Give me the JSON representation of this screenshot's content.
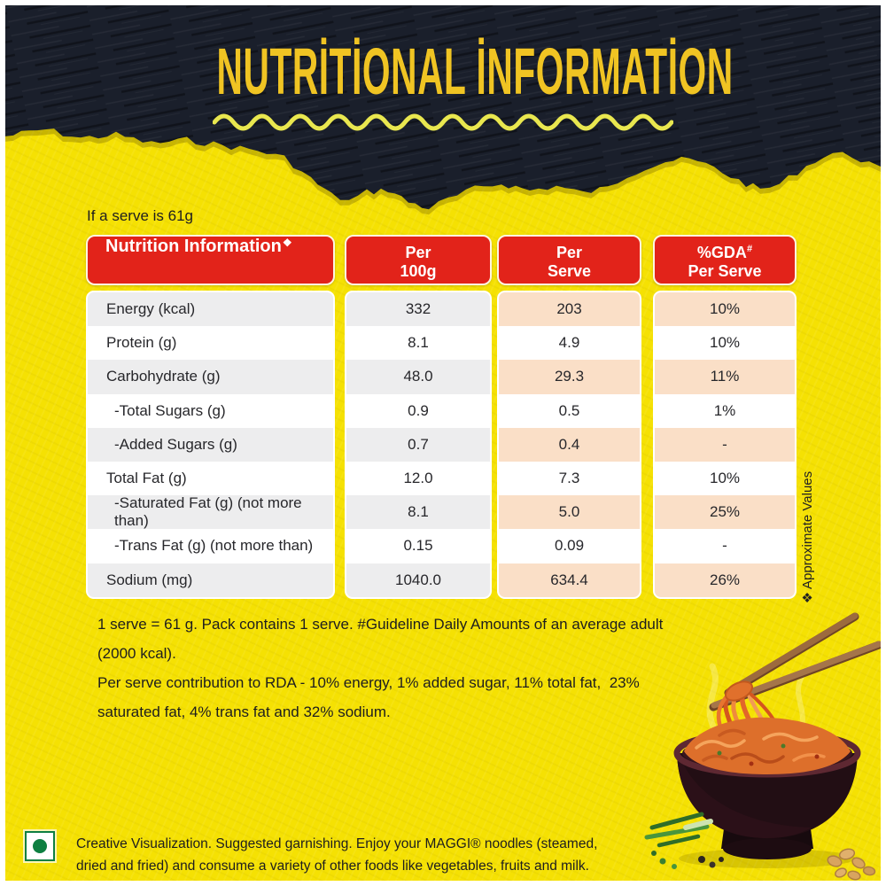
{
  "header": {
    "title": "NUTRİTİONAL İNFORMATİON"
  },
  "intro_text": "If a serve is 61g",
  "table": {
    "name_header": {
      "text": "Nutrition Information",
      "symbol": "❖"
    },
    "col_headers": [
      {
        "line1": "Per",
        "sup": "",
        "line2": "100g"
      },
      {
        "line1": "Per",
        "sup": "",
        "line2": "Serve"
      },
      {
        "line1": "%GDA",
        "sup": "#",
        "line2": "Per Serve"
      }
    ],
    "rows": [
      {
        "label": "Energy (kcal)",
        "per100": "332",
        "serve": "203",
        "gda": "10%"
      },
      {
        "label": "Protein (g)",
        "per100": "8.1",
        "serve": "4.9",
        "gda": "10%"
      },
      {
        "label": "Carbohydrate (g)",
        "per100": "48.0",
        "serve": "29.3",
        "gda": "11%"
      },
      {
        "label": "-Total Sugars (g)",
        "per100": "0.9",
        "serve": "0.5",
        "gda": "1%"
      },
      {
        "label": "-Added Sugars (g)",
        "per100": "0.7",
        "serve": "0.4",
        "gda": "-"
      },
      {
        "label": "Total Fat (g)",
        "per100": "12.0",
        "serve": "7.3",
        "gda": "10%"
      },
      {
        "label": "-Saturated Fat (g) (not more than)",
        "per100": "8.1",
        "serve": "5.0",
        "gda": "25%"
      },
      {
        "label": "-Trans Fat (g) (not more than)",
        "per100": "0.15",
        "serve": "0.09",
        "gda": "-"
      },
      {
        "label": "Sodium (mg)",
        "per100": "1040.0",
        "serve": "634.4",
        "gda": "26%"
      }
    ]
  },
  "side_note": {
    "symbol": "❖",
    "text": "Approximate Values"
  },
  "footnote_lines": [
    "1 serve = 61 g. Pack contains 1 serve. #Guideline Daily Amounts of an average adult  (2000 kcal).",
    "Per serve contribution to RDA - 10% energy, 1% added sugar, 11% total fat,  23%",
    "saturated fat, 4% trans fat and 32% sodium."
  ],
  "disclaimer": "Creative Visualization. Suggested garnishing. Enjoy your MAGGI® noodles (steamed, dried and fried) and consume a variety of other foods like vegetables, fruits and milk.",
  "veg_mark_meaning": "vegetarian",
  "illustration": "noodle-bowl-with-chopsticks",
  "colors": {
    "background_yellow": "#f5e103",
    "panel_dark": "#1a1f2b",
    "title_gold": "#f0c423",
    "squiggle_yellow": "#e9e74f",
    "header_red": "#e2231a",
    "row_gray": "#ededee",
    "row_peach": "#fadfc7",
    "veg_green": "#0e7f41"
  }
}
